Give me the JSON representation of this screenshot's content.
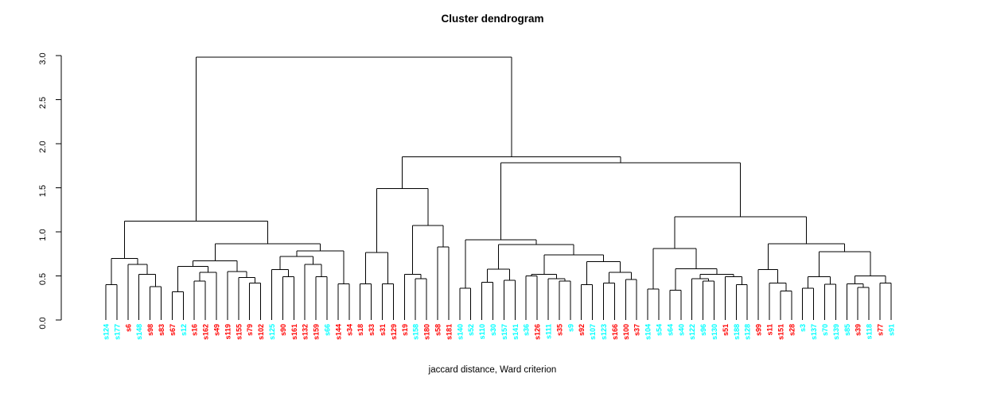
{
  "chart_data": {
    "type": "dendrogram",
    "title": "Cluster dendrogram",
    "xlabel": "jaccard distance, Ward criterion",
    "ylabel": "",
    "ylim": [
      0,
      3
    ],
    "yticks": [
      "0.0",
      "0.5",
      "1.0",
      "1.5",
      "2.0",
      "2.5",
      "3.0"
    ],
    "grid": false,
    "legend": "none",
    "palette": {
      "red": "#FF0000",
      "cyan": "#00FFFF",
      "line": "#000000"
    },
    "leaves": [
      {
        "label": "s124",
        "color": "cyan"
      },
      {
        "label": "s177",
        "color": "cyan"
      },
      {
        "label": "s6",
        "color": "red"
      },
      {
        "label": "s148",
        "color": "cyan"
      },
      {
        "label": "s98",
        "color": "red"
      },
      {
        "label": "s83",
        "color": "red"
      },
      {
        "label": "s67",
        "color": "red"
      },
      {
        "label": "s12",
        "color": "cyan"
      },
      {
        "label": "s16",
        "color": "red"
      },
      {
        "label": "s162",
        "color": "red"
      },
      {
        "label": "s49",
        "color": "red"
      },
      {
        "label": "s119",
        "color": "red"
      },
      {
        "label": "s155",
        "color": "red"
      },
      {
        "label": "s79",
        "color": "red"
      },
      {
        "label": "s102",
        "color": "red"
      },
      {
        "label": "s125",
        "color": "cyan"
      },
      {
        "label": "s90",
        "color": "red"
      },
      {
        "label": "s161",
        "color": "red"
      },
      {
        "label": "s132",
        "color": "red"
      },
      {
        "label": "s159",
        "color": "red"
      },
      {
        "label": "s66",
        "color": "cyan"
      },
      {
        "label": "s144",
        "color": "red"
      },
      {
        "label": "s34",
        "color": "red"
      },
      {
        "label": "s18",
        "color": "red"
      },
      {
        "label": "s33",
        "color": "red"
      },
      {
        "label": "s31",
        "color": "red"
      },
      {
        "label": "s129",
        "color": "red"
      },
      {
        "label": "s19",
        "color": "red"
      },
      {
        "label": "s158",
        "color": "cyan"
      },
      {
        "label": "s180",
        "color": "red"
      },
      {
        "label": "s58",
        "color": "red"
      },
      {
        "label": "s181",
        "color": "red"
      },
      {
        "label": "s140",
        "color": "cyan"
      },
      {
        "label": "s52",
        "color": "cyan"
      },
      {
        "label": "s110",
        "color": "cyan"
      },
      {
        "label": "s30",
        "color": "cyan"
      },
      {
        "label": "s157",
        "color": "cyan"
      },
      {
        "label": "s141",
        "color": "cyan"
      },
      {
        "label": "s36",
        "color": "cyan"
      },
      {
        "label": "s126",
        "color": "red"
      },
      {
        "label": "s111",
        "color": "cyan"
      },
      {
        "label": "s35",
        "color": "red"
      },
      {
        "label": "s9",
        "color": "cyan"
      },
      {
        "label": "s92",
        "color": "red"
      },
      {
        "label": "s107",
        "color": "cyan"
      },
      {
        "label": "s123",
        "color": "cyan"
      },
      {
        "label": "s166",
        "color": "red"
      },
      {
        "label": "s100",
        "color": "red"
      },
      {
        "label": "s37",
        "color": "red"
      },
      {
        "label": "s104",
        "color": "cyan"
      },
      {
        "label": "s54",
        "color": "cyan"
      },
      {
        "label": "s64",
        "color": "cyan"
      },
      {
        "label": "s40",
        "color": "cyan"
      },
      {
        "label": "s122",
        "color": "cyan"
      },
      {
        "label": "s96",
        "color": "cyan"
      },
      {
        "label": "s130",
        "color": "cyan"
      },
      {
        "label": "s51",
        "color": "red"
      },
      {
        "label": "s188",
        "color": "cyan"
      },
      {
        "label": "s128",
        "color": "cyan"
      },
      {
        "label": "s99",
        "color": "red"
      },
      {
        "label": "s11",
        "color": "red"
      },
      {
        "label": "s151",
        "color": "red"
      },
      {
        "label": "s28",
        "color": "red"
      },
      {
        "label": "s3",
        "color": "cyan"
      },
      {
        "label": "s137",
        "color": "cyan"
      },
      {
        "label": "s70",
        "color": "cyan"
      },
      {
        "label": "s139",
        "color": "cyan"
      },
      {
        "label": "s85",
        "color": "cyan"
      },
      {
        "label": "s39",
        "color": "red"
      },
      {
        "label": "s118",
        "color": "cyan"
      },
      {
        "label": "s77",
        "color": "red"
      },
      {
        "label": "s91",
        "color": "cyan"
      }
    ],
    "tree": {
      "h": 2.98,
      "c": [
        {
          "h": 1.12,
          "c": [
            {
              "h": 0.7,
              "c": [
                {
                  "h": 0.4,
                  "c": [
                    "s124",
                    "s177"
                  ]
                },
                {
                  "h": 0.63,
                  "c": [
                    "s6",
                    {
                      "h": 0.52,
                      "c": [
                        "s148",
                        {
                          "h": 0.38,
                          "c": [
                            "s98",
                            "s83"
                          ]
                        }
                      ]
                    }
                  ]
                }
              ]
            },
            {
              "h": 0.865,
              "c": [
                {
                  "h": 0.67,
                  "c": [
                    {
                      "h": 0.61,
                      "c": [
                        {
                          "h": 0.32,
                          "c": [
                            "s67",
                            "s12"
                          ]
                        },
                        {
                          "h": 0.54,
                          "c": [
                            {
                              "h": 0.44,
                              "c": [
                                "s16",
                                "s162"
                              ]
                            },
                            "s49"
                          ]
                        }
                      ]
                    },
                    {
                      "h": 0.55,
                      "c": [
                        "s119",
                        {
                          "h": 0.48,
                          "c": [
                            "s155",
                            {
                              "h": 0.42,
                              "c": [
                                "s79",
                                "s102"
                              ]
                            }
                          ]
                        }
                      ]
                    }
                  ]
                },
                {
                  "h": 0.785,
                  "c": [
                    {
                      "h": 0.72,
                      "c": [
                        {
                          "h": 0.57,
                          "c": [
                            "s125",
                            {
                              "h": 0.49,
                              "c": [
                                "s90",
                                "s161"
                              ]
                            }
                          ]
                        },
                        {
                          "h": 0.63,
                          "c": [
                            "s132",
                            {
                              "h": 0.49,
                              "c": [
                                "s159",
                                "s66"
                              ]
                            }
                          ]
                        }
                      ]
                    },
                    {
                      "h": 0.41,
                      "c": [
                        "s144",
                        "s34"
                      ]
                    }
                  ]
                }
              ]
            }
          ]
        },
        {
          "h": 1.85,
          "c": [
            {
              "h": 1.49,
              "c": [
                {
                  "h": 0.765,
                  "c": [
                    {
                      "h": 0.41,
                      "c": [
                        "s18",
                        "s33"
                      ]
                    },
                    {
                      "h": 0.41,
                      "c": [
                        "s31",
                        "s129"
                      ]
                    }
                  ]
                },
                {
                  "h": 1.07,
                  "c": [
                    {
                      "h": 0.52,
                      "c": [
                        "s19",
                        {
                          "h": 0.47,
                          "c": [
                            "s158",
                            "s180"
                          ]
                        }
                      ]
                    },
                    {
                      "h": 0.83,
                      "c": [
                        "s58",
                        "s181"
                      ]
                    }
                  ]
                }
              ]
            },
            {
              "h": 1.785,
              "c": [
                {
                  "h": 0.91,
                  "c": [
                    {
                      "h": 0.36,
                      "c": [
                        "s140",
                        "s52"
                      ]
                    },
                    {
                      "h": 0.855,
                      "c": [
                        {
                          "h": 0.575,
                          "c": [
                            {
                              "h": 0.43,
                              "c": [
                                "s110",
                                "s30"
                              ]
                            },
                            {
                              "h": 0.45,
                              "c": [
                                "s157",
                                "s141"
                              ]
                            }
                          ]
                        },
                        {
                          "h": 0.74,
                          "c": [
                            {
                              "h": 0.52,
                              "c": [
                                {
                                  "h": 0.5,
                                  "c": [
                                    "s36",
                                    "s126"
                                  ]
                                },
                                {
                                  "h": 0.47,
                                  "c": [
                                    "s111",
                                    {
                                      "h": 0.44,
                                      "c": [
                                        "s35",
                                        "s9"
                                      ]
                                    }
                                  ]
                                }
                              ]
                            },
                            {
                              "h": 0.66,
                              "c": [
                                {
                                  "h": 0.4,
                                  "c": [
                                    "s92",
                                    "s107"
                                  ]
                                },
                                {
                                  "h": 0.54,
                                  "c": [
                                    {
                                      "h": 0.42,
                                      "c": [
                                        "s123",
                                        "s166"
                                      ]
                                    },
                                    {
                                      "h": 0.46,
                                      "c": [
                                        "s100",
                                        "s37"
                                      ]
                                    }
                                  ]
                                }
                              ]
                            }
                          ]
                        }
                      ]
                    }
                  ]
                },
                {
                  "h": 1.17,
                  "c": [
                    {
                      "h": 0.81,
                      "c": [
                        {
                          "h": 0.35,
                          "c": [
                            "s104",
                            "s54"
                          ]
                        },
                        {
                          "h": 0.58,
                          "c": [
                            {
                              "h": 0.34,
                              "c": [
                                "s64",
                                "s40"
                              ]
                            },
                            {
                              "h": 0.52,
                              "c": [
                                {
                                  "h": 0.47,
                                  "c": [
                                    "s122",
                                    {
                                      "h": 0.44,
                                      "c": [
                                        "s96",
                                        "s130"
                                      ]
                                    }
                                  ]
                                },
                                {
                                  "h": 0.49,
                                  "c": [
                                    "s51",
                                    {
                                      "h": 0.4,
                                      "c": [
                                        "s188",
                                        "s128"
                                      ]
                                    }
                                  ]
                                }
                              ]
                            }
                          ]
                        }
                      ]
                    },
                    {
                      "h": 0.865,
                      "c": [
                        {
                          "h": 0.57,
                          "c": [
                            "s99",
                            {
                              "h": 0.42,
                              "c": [
                                "s11",
                                {
                                  "h": 0.33,
                                  "c": [
                                    "s151",
                                    "s28"
                                  ]
                                }
                              ]
                            }
                          ]
                        },
                        {
                          "h": 0.775,
                          "c": [
                            {
                              "h": 0.49,
                              "c": [
                                {
                                  "h": 0.36,
                                  "c": [
                                    "s3",
                                    "s137"
                                  ]
                                },
                                {
                                  "h": 0.405,
                                  "c": [
                                    "s70",
                                    "s139"
                                  ]
                                }
                              ]
                            },
                            {
                              "h": 0.5,
                              "c": [
                                {
                                  "h": 0.41,
                                  "c": [
                                    "s85",
                                    {
                                      "h": 0.37,
                                      "c": [
                                        "s39",
                                        "s118"
                                      ]
                                    }
                                  ]
                                },
                                {
                                  "h": 0.42,
                                  "c": [
                                    "s77",
                                    "s91"
                                  ]
                                }
                              ]
                            }
                          ]
                        }
                      ]
                    }
                  ]
                }
              ]
            }
          ]
        }
      ]
    }
  }
}
